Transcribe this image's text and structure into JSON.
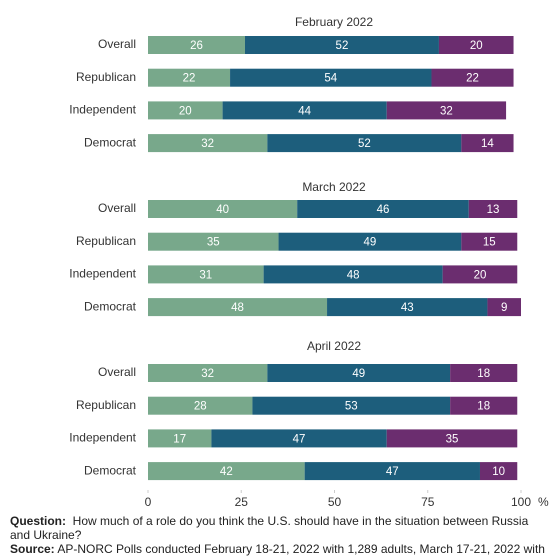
{
  "chart_data": [
    {
      "type": "bar",
      "orientation": "horizontal",
      "stacked": true,
      "title": "February 2022",
      "categories": [
        "Overall",
        "Republican",
        "Independent",
        "Democrat"
      ],
      "series": [
        {
          "color": "#78a88b",
          "values": [
            26,
            22,
            20,
            32
          ]
        },
        {
          "color": "#1d5e7c",
          "values": [
            52,
            54,
            44,
            52
          ]
        },
        {
          "color": "#6b2d6f",
          "values": [
            20,
            22,
            32,
            14
          ]
        }
      ],
      "xlim": [
        0,
        100
      ]
    },
    {
      "type": "bar",
      "orientation": "horizontal",
      "stacked": true,
      "title": "March 2022",
      "categories": [
        "Overall",
        "Republican",
        "Independent",
        "Democrat"
      ],
      "series": [
        {
          "color": "#78a88b",
          "values": [
            40,
            35,
            31,
            48
          ]
        },
        {
          "color": "#1d5e7c",
          "values": [
            46,
            49,
            48,
            43
          ]
        },
        {
          "color": "#6b2d6f",
          "values": [
            13,
            15,
            20,
            9
          ]
        }
      ],
      "xlim": [
        0,
        100
      ]
    },
    {
      "type": "bar",
      "orientation": "horizontal",
      "stacked": true,
      "title": "April 2022",
      "categories": [
        "Overall",
        "Republican",
        "Independent",
        "Democrat"
      ],
      "series": [
        {
          "color": "#78a88b",
          "values": [
            32,
            28,
            17,
            42
          ]
        },
        {
          "color": "#1d5e7c",
          "values": [
            49,
            53,
            47,
            47
          ]
        },
        {
          "color": "#6b2d6f",
          "values": [
            18,
            18,
            35,
            10
          ]
        }
      ],
      "xlim": [
        0,
        100
      ],
      "xticks": [
        0,
        25,
        50,
        75,
        100
      ],
      "xlabel": "%"
    }
  ],
  "footer": {
    "question_label": "Question:",
    "question": "How much of a role do you think the U.S. should have in the situation between Russia and Ukraine?",
    "source_label": "Source:",
    "source": "AP-NORC Polls conducted February 18-21, 2022 with 1,289 adults, March 17-21, 2022 with"
  }
}
